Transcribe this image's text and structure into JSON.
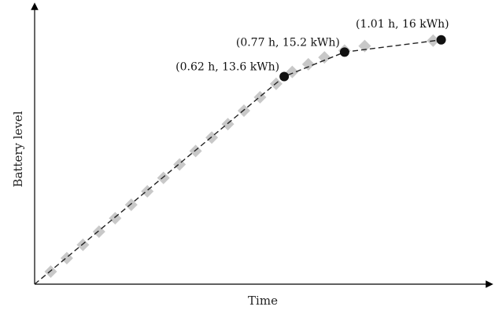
{
  "chart_data": {
    "type": "line",
    "title": "",
    "xlabel": "Time",
    "ylabel": "Battery level",
    "x_unit": "h",
    "y_unit": "kWh",
    "grid": false,
    "legend": "none",
    "xlim": [
      0,
      1.13
    ],
    "ylim": [
      0,
      18.2
    ],
    "series": [
      {
        "style": "dashed-black",
        "x": [
          0,
          0.62,
          0.77,
          1.01
        ],
        "y": [
          0,
          13.6,
          15.2,
          16
        ]
      },
      {
        "style": "grey-diamond-markers",
        "x": [
          0.04,
          0.08,
          0.12,
          0.16,
          0.2,
          0.24,
          0.28,
          0.32,
          0.36,
          0.4,
          0.44,
          0.48,
          0.52,
          0.56,
          0.6,
          0.64,
          0.68,
          0.72,
          0.77,
          0.82,
          0.99
        ],
        "y": [
          0.82,
          1.7,
          2.58,
          3.44,
          4.32,
          5.2,
          6.08,
          6.96,
          7.84,
          8.72,
          9.6,
          10.48,
          11.36,
          12.24,
          13.12,
          13.9,
          14.4,
          14.85,
          15.3,
          15.6,
          15.95
        ]
      }
    ],
    "highlighted_points": [
      {
        "x": 0.62,
        "y": 13.6,
        "label": "(0.62 h, 13.6 kWh)"
      },
      {
        "x": 0.77,
        "y": 15.2,
        "label": "(0.77 h, 15.2 kWh)"
      },
      {
        "x": 1.01,
        "y": 16,
        "label": "(1.01 h, 16 kWh)"
      }
    ],
    "colors": {
      "axis": "#000000",
      "dashed_line": "#222222",
      "markers": "#c8c8c8",
      "points": "#111111"
    }
  }
}
